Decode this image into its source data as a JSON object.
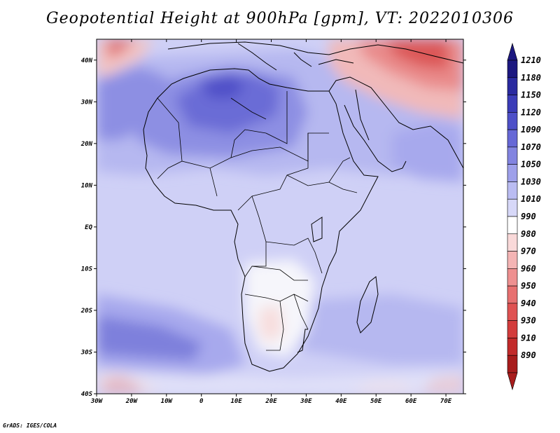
{
  "title": "Geopotential Height at 900hPa [gpm], VT: 2022010306",
  "credit": "GrADS: IGES/COLA",
  "map": {
    "lon_range": [
      -30,
      75
    ],
    "lat_range": [
      -40,
      45
    ],
    "lon_ticks": [
      "30W",
      "20W",
      "10W",
      "0",
      "10E",
      "20E",
      "30E",
      "40E",
      "50E",
      "60E",
      "70E"
    ],
    "lat_ticks": [
      "40N",
      "30N",
      "20N",
      "10N",
      "EQ",
      "10S",
      "20S",
      "30S",
      "40S"
    ]
  },
  "colorbar": {
    "labels": [
      "1210",
      "1180",
      "1150",
      "1120",
      "1090",
      "1070",
      "1050",
      "1030",
      "1010",
      "990",
      "980",
      "970",
      "960",
      "950",
      "940",
      "930",
      "910",
      "890"
    ],
    "colors": [
      "#1c1880",
      "#2a2aa0",
      "#3b3cb8",
      "#4e50c8",
      "#6668d6",
      "#8284e0",
      "#9ea0ea",
      "#babcf2",
      "#d7d8f8",
      "#ffffff",
      "#f9d9d9",
      "#f4b4b4",
      "#ee9090",
      "#e77070",
      "#df5252",
      "#d33c3c",
      "#c22a2a",
      "#a81c1c"
    ]
  },
  "chart_data": {
    "type": "heatmap",
    "title": "Geopotential Height at 900hPa [gpm], VT: 2022010306",
    "variable": "Geopotential Height",
    "level": "900hPa",
    "units": "gpm",
    "valid_time": "2022010306",
    "x_axis": {
      "range": [
        -30,
        75
      ],
      "ticks": [
        "30W",
        "20W",
        "10W",
        "0",
        "10E",
        "20E",
        "30E",
        "40E",
        "50E",
        "60E",
        "70E"
      ]
    },
    "y_axis": {
      "range": [
        -40,
        45
      ],
      "ticks": [
        "40N",
        "30N",
        "20N",
        "10N",
        "EQ",
        "10S",
        "20S",
        "30S",
        "40S"
      ]
    },
    "levels": [
      890,
      910,
      930,
      940,
      950,
      960,
      970,
      980,
      990,
      1010,
      1030,
      1050,
      1070,
      1090,
      1120,
      1150,
      1180,
      1210
    ]
  }
}
